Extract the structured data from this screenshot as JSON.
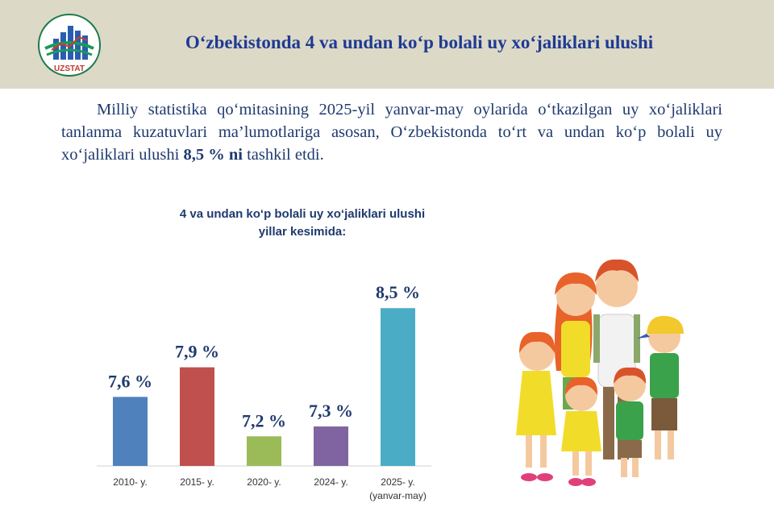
{
  "header": {
    "title": "O‘zbekistonda 4 va undan ko‘p bolali uy xo‘jaliklari ulushi",
    "logo_text": "UZSTAT"
  },
  "intro": {
    "text_before": "Milliy statistika qo‘mitasining 2025-yil yanvar-may oylarida o‘tkazilgan uy xo‘jaliklari tanlanma kuzatuvlari ma’lumotlariga asosan, O‘zbekistonda to‘rt va undan ko‘p bolali uy xo‘jaliklari ulushi ",
    "highlight": "8,5 % ni",
    "text_after": " tashkil etdi."
  },
  "chart_data": {
    "type": "bar",
    "title_line1": "4 va undan ko‘p bolali uy xo‘jaliklari  ulushi",
    "title_line2": "yillar  kesimida:",
    "categories": [
      "2010- y.",
      "2015- y.",
      "2020- y.",
      "2024- y.",
      "2025- y."
    ],
    "category_sublabels": [
      "",
      "",
      "",
      "",
      "(yanvar-may)"
    ],
    "values": [
      7.6,
      7.9,
      7.2,
      7.3,
      8.5
    ],
    "value_labels": [
      "7,6 %",
      "7,9 %",
      "7,2 %",
      "7,3 %",
      "8,5 %"
    ],
    "colors": [
      "#4f81bd",
      "#c0504d",
      "#9bbb59",
      "#8064a2",
      "#4bacc6"
    ],
    "ylim": [
      6.9,
      8.6
    ],
    "grid": false,
    "legend": "none"
  }
}
